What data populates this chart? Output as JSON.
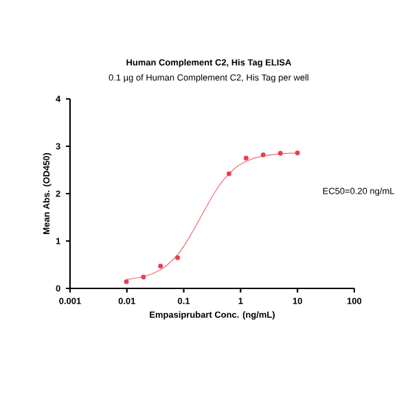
{
  "chart_data": {
    "type": "scatter",
    "title": "Human Complement C2, His Tag ELISA",
    "subtitle": "0.1 µg of Human Complement C2, His Tag per well",
    "xlabel": "Empasiprubart Conc. (ng/mL)",
    "ylabel": "Mean Abs. (OD450)",
    "annotations": [
      "EC50=0.20 ng/mL"
    ],
    "log": "x",
    "xlim": [
      0.001,
      100
    ],
    "xticks": [
      0.001,
      0.01,
      0.1,
      1,
      10,
      100
    ],
    "ylim": [
      0,
      4
    ],
    "yticks": [
      0,
      1,
      2,
      3,
      4
    ],
    "grid": false,
    "series": [
      {
        "marker": "circle",
        "color": "#e8404f",
        "x": [
          0.0098,
          0.0195,
          0.039,
          0.078,
          0.625,
          1.25,
          2.5,
          5,
          10
        ],
        "values": [
          0.14,
          0.24,
          0.47,
          0.65,
          2.42,
          2.75,
          2.82,
          2.85,
          2.86
        ]
      },
      {
        "type": "line",
        "marker": "none",
        "color": "#ec6a72",
        "x": [
          0.01,
          0.02,
          0.04,
          0.06,
          0.08,
          0.1,
          0.13,
          0.16,
          0.2,
          0.25,
          0.32,
          0.4,
          0.5,
          0.63,
          0.8,
          1,
          1.5,
          2,
          3,
          5,
          10
        ],
        "values": [
          0.19,
          0.25,
          0.4,
          0.57,
          0.73,
          0.89,
          1.11,
          1.3,
          1.51,
          1.72,
          1.95,
          2.13,
          2.29,
          2.42,
          2.54,
          2.62,
          2.72,
          2.77,
          2.81,
          2.84,
          2.86
        ]
      }
    ]
  }
}
